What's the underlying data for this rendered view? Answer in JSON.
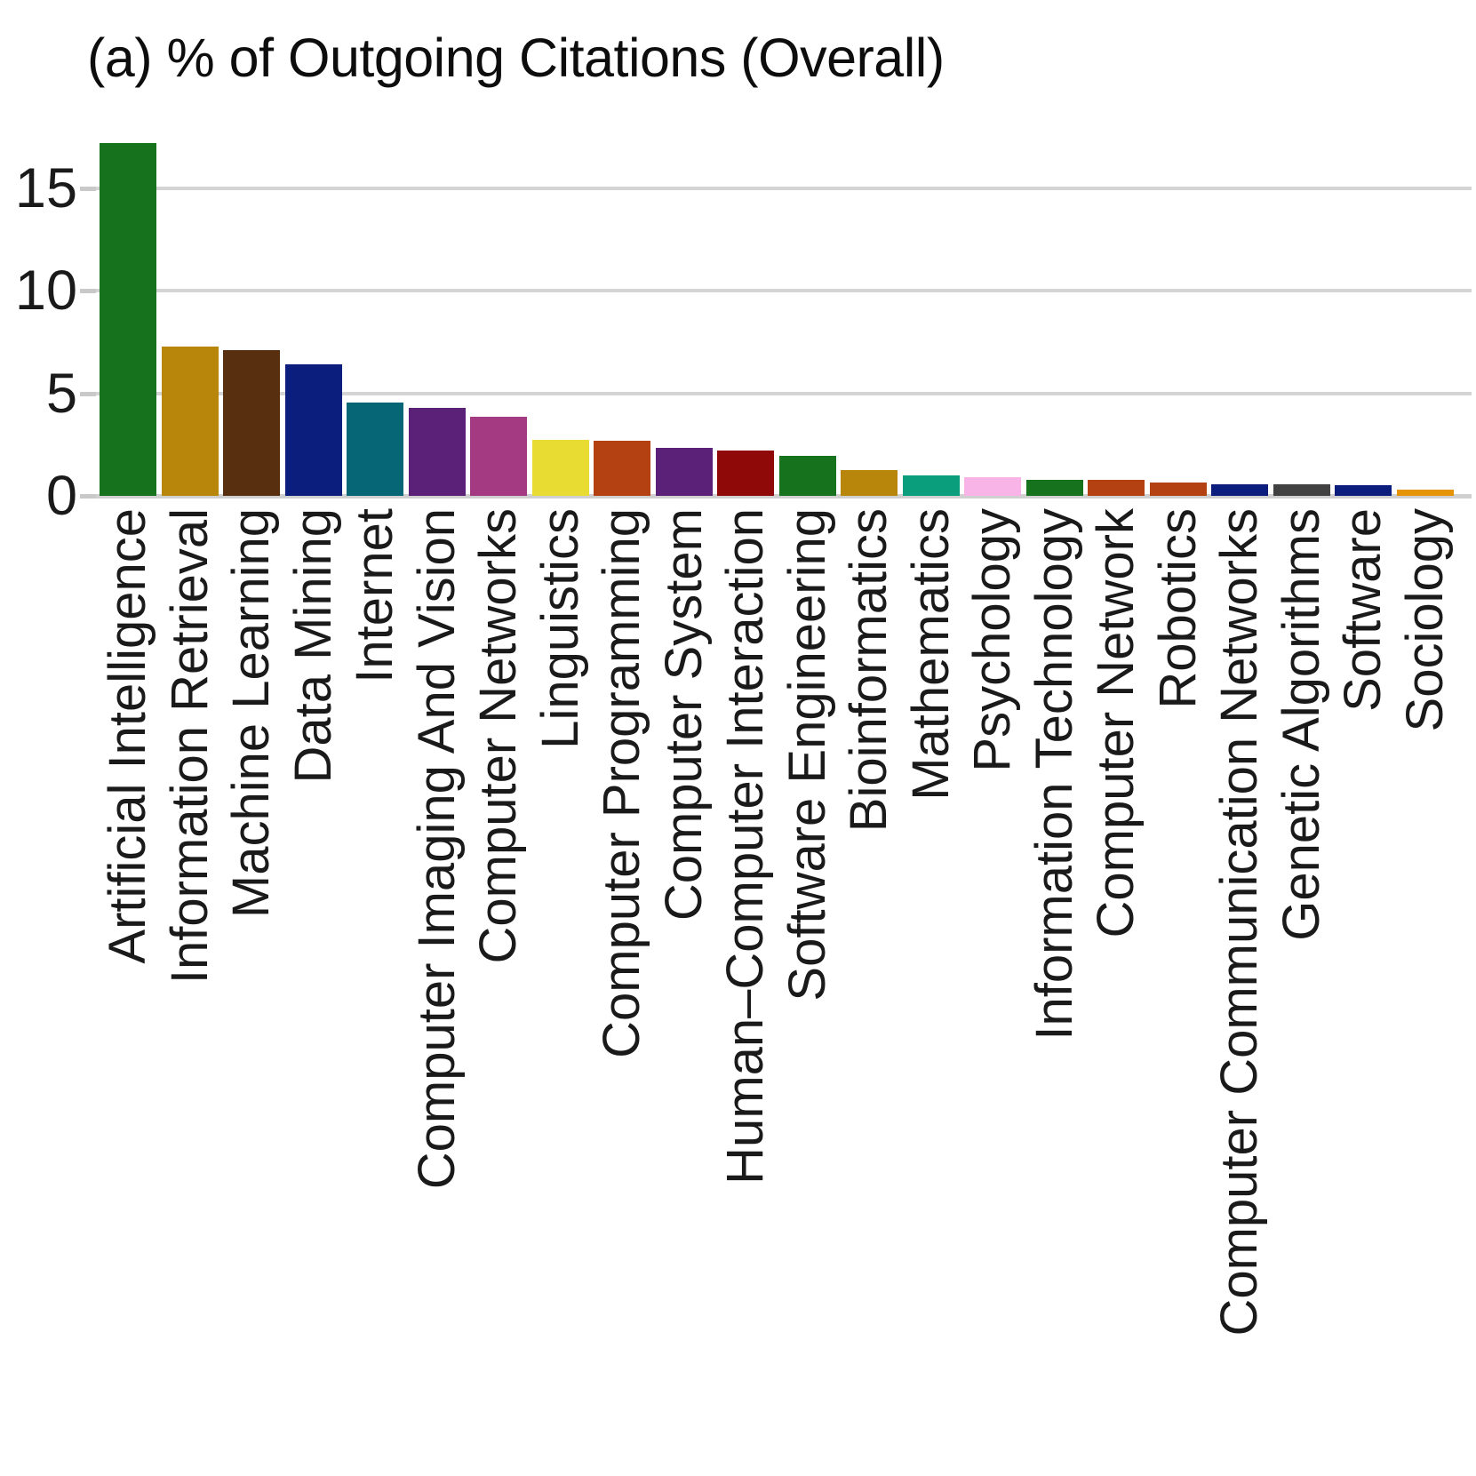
{
  "title": "(a) % of Outgoing Citations (Overall)",
  "chart_data": {
    "type": "bar",
    "title": "(a) % of Outgoing Citations (Overall)",
    "xlabel": "",
    "ylabel": "",
    "ylim": [
      0,
      17.5
    ],
    "yticks": [
      0,
      5,
      10,
      15
    ],
    "grid": "horizontal",
    "legend_position": "none",
    "x_tick_rotation": 90,
    "categories": [
      "Artificial Intelligence",
      "Information Retrieval",
      "Machine Learning",
      "Data Mining",
      "Internet",
      "Computer Imaging And Vision",
      "Computer Networks",
      "Linguistics",
      "Computer Programming",
      "Computer System",
      "Human–Computer Interaction",
      "Software Engineering",
      "Bioinformatics",
      "Mathematics",
      "Psychology",
      "Information Technology",
      "Computer Network",
      "Robotics",
      "Computer Communication Networks",
      "Genetic Algorithms",
      "Software",
      "Sociology"
    ],
    "values": [
      17.2,
      7.3,
      7.1,
      6.4,
      4.55,
      4.3,
      3.85,
      2.75,
      2.7,
      2.35,
      2.2,
      1.95,
      1.25,
      1.0,
      0.9,
      0.8,
      0.8,
      0.65,
      0.55,
      0.55,
      0.5,
      0.32
    ],
    "bar_colors": [
      "#17721d",
      "#b8860b",
      "#59300f",
      "#0b1e7d",
      "#066676",
      "#5b2179",
      "#a43a82",
      "#e8dc33",
      "#b44112",
      "#5b2179",
      "#8f0909",
      "#17721d",
      "#b8860b",
      "#0b9e7c",
      "#f8b3e7",
      "#17721d",
      "#b44112",
      "#b44112",
      "#0b1e7d",
      "#414141",
      "#0b1e7d",
      "#e59408"
    ],
    "gridline_color": "#d4d4d4",
    "axis_line_color": "#d0d0d0",
    "tick_mark_color": "#c9c9c9",
    "text_color": "#1a1a1a"
  }
}
